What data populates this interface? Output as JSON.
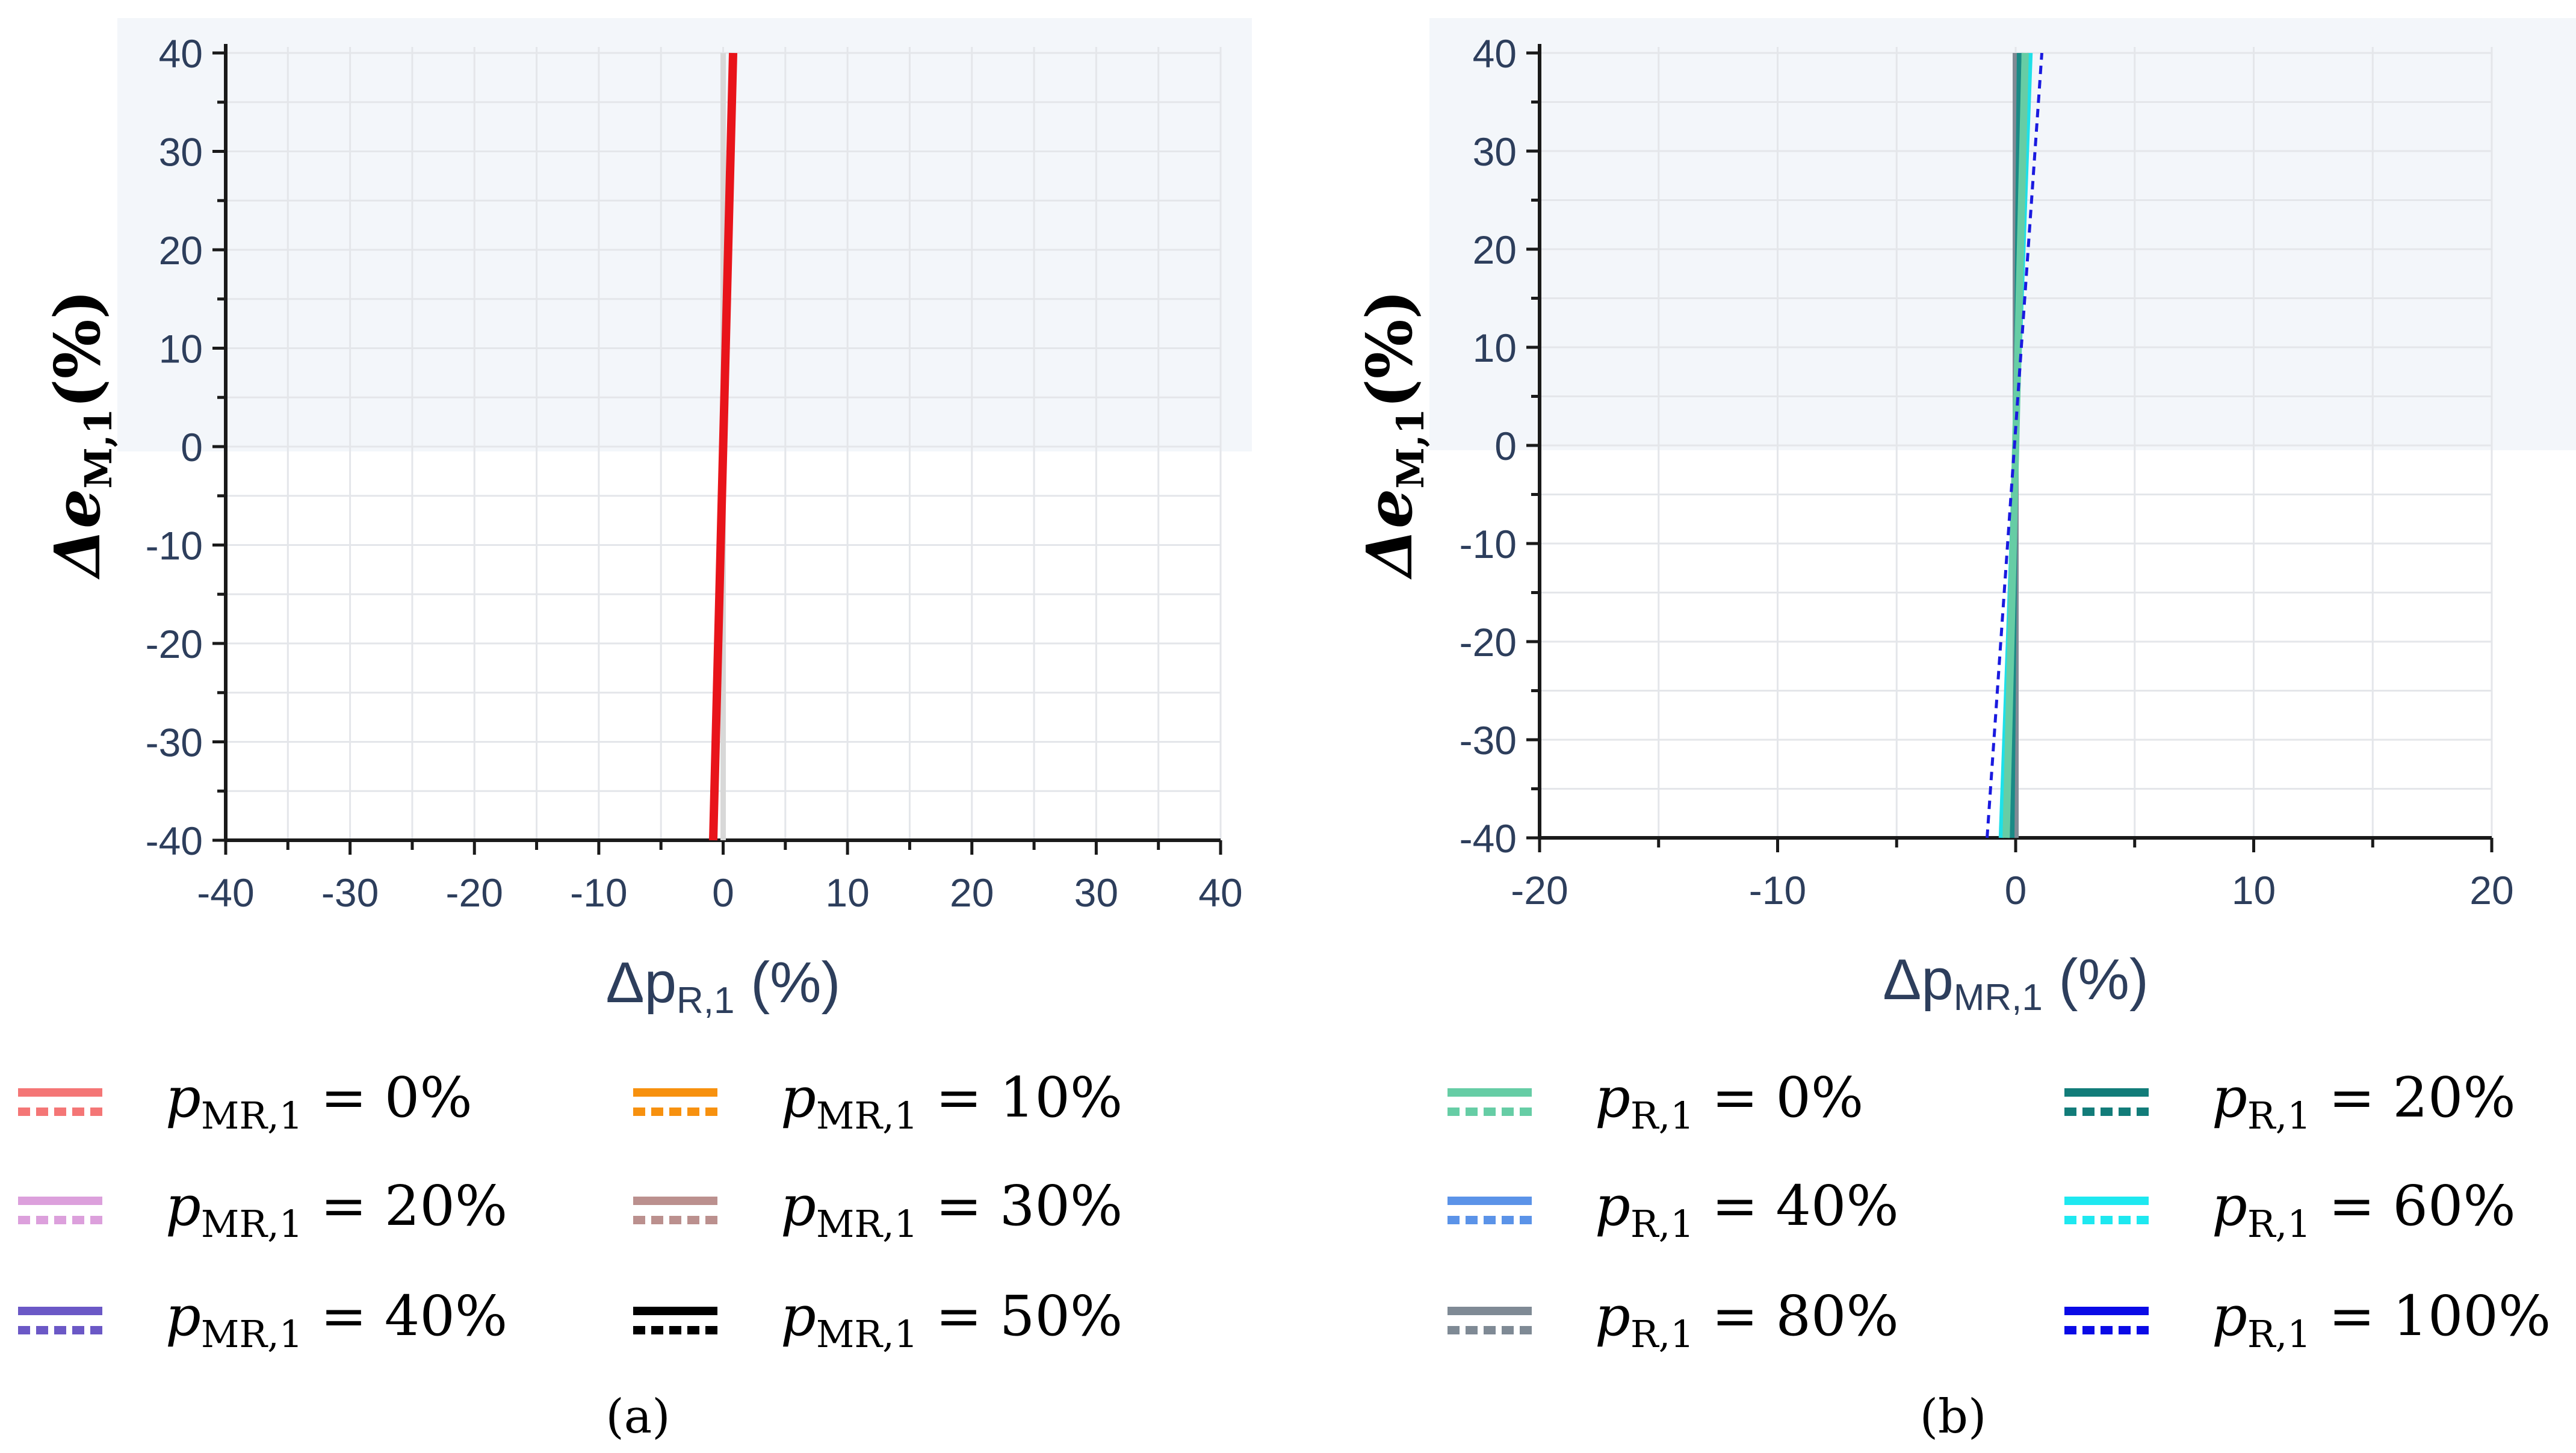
{
  "chart_data": [
    {
      "panel": "a",
      "type": "line",
      "caption": "(a)",
      "xlabel": {
        "main": "Δp",
        "sub": "R,1",
        "unit": " (%)"
      },
      "ylabel": {
        "main": "Δe",
        "sub": "M,1",
        "unit": "(%)"
      },
      "xlim": [
        -40,
        40
      ],
      "ylim": [
        -40,
        40
      ],
      "x_ticks": [
        "-40",
        "-30",
        "-20",
        "-10",
        "0",
        "10",
        "20",
        "30",
        "40"
      ],
      "x_tick_values": [
        -40,
        -30,
        -20,
        -10,
        0,
        10,
        20,
        30,
        40
      ],
      "y_ticks": [
        "40",
        "30",
        "20",
        "10",
        "0",
        "-10",
        "-20",
        "-30",
        "-40"
      ],
      "y_tick_values": [
        40,
        30,
        20,
        10,
        0,
        -10,
        -20,
        -30,
        -40
      ],
      "grid": true,
      "shaded_region": {
        "y_from": 0,
        "y_to": 40,
        "color": "#f3f6fa"
      },
      "series": [
        {
          "color": "#d8d8d8",
          "width": 9,
          "dash": false,
          "x": [
            0,
            0
          ],
          "y": [
            -40,
            40
          ]
        },
        {
          "color": "#e8141a",
          "width": 14,
          "dash": false,
          "x": [
            -0.8,
            0.8
          ],
          "y": [
            -40,
            40
          ]
        }
      ],
      "legend": [
        {
          "var": "p",
          "sub": "MR,1",
          "value": " = 0%",
          "color": "#f47676"
        },
        {
          "var": "p",
          "sub": "MR,1",
          "value": " = 10%",
          "color": "#f7910f"
        },
        {
          "var": "p",
          "sub": "MR,1",
          "value": " = 20%",
          "color": "#dca0dc"
        },
        {
          "var": "p",
          "sub": "MR,1",
          "value": " = 30%",
          "color": "#bb908e"
        },
        {
          "var": "p",
          "sub": "MR,1",
          "value": " = 40%",
          "color": "#6b58c6"
        },
        {
          "var": "p",
          "sub": "MR,1",
          "value": " = 50%",
          "color": "#000000"
        }
      ]
    },
    {
      "panel": "b",
      "type": "line",
      "caption": "(b)",
      "xlabel": {
        "main": "Δp",
        "sub": "MR,1",
        "unit": " (%)"
      },
      "ylabel": {
        "main": "Δe",
        "sub": "M,1",
        "unit": "(%)"
      },
      "xlim": [
        -20,
        20
      ],
      "ylim": [
        -40,
        40
      ],
      "x_ticks": [
        "-20",
        "-10",
        "0",
        "10",
        "20"
      ],
      "x_tick_values": [
        -20,
        -10,
        0,
        10,
        20
      ],
      "y_ticks": [
        "40",
        "30",
        "20",
        "10",
        "0",
        "-10",
        "-20",
        "-30",
        "-40"
      ],
      "y_tick_values": [
        40,
        30,
        20,
        10,
        0,
        -10,
        -20,
        -30,
        -40
      ],
      "grid": true,
      "shaded_region": {
        "y_from": 0,
        "y_to": 40,
        "color": "#f3f6fa"
      },
      "series": [
        {
          "color": "#d8d8d8",
          "width": 9,
          "dash": false,
          "x": [
            0,
            0
          ],
          "y": [
            -40,
            40
          ]
        },
        {
          "color": "#808a95",
          "width": 10,
          "dash": false,
          "x": [
            0,
            0
          ],
          "y": [
            -40,
            40
          ]
        },
        {
          "color": "#1a8a86",
          "width": 8,
          "dash": false,
          "x": [
            -0.15,
            0.15
          ],
          "y": [
            -40,
            40
          ]
        },
        {
          "color": "#5b93e8",
          "width": 8,
          "dash": false,
          "x": [
            -0.35,
            0.35
          ],
          "y": [
            -40,
            40
          ]
        },
        {
          "color": "#1ee0e8",
          "width": 9,
          "dash": false,
          "x": [
            -0.6,
            0.6
          ],
          "y": [
            -40,
            40
          ]
        },
        {
          "color": "#66cda5",
          "width": 12,
          "dash": false,
          "x": [
            -0.4,
            0.4
          ],
          "y": [
            -40,
            40
          ]
        },
        {
          "color": "#1a1adf",
          "width": 5,
          "dash": true,
          "x": [
            -1.2,
            1.1
          ],
          "y": [
            -40,
            40
          ]
        }
      ],
      "legend": [
        {
          "var": "p",
          "sub": "R,1",
          "value": " = 0%",
          "color": "#66cda5"
        },
        {
          "var": "p",
          "sub": "R,1",
          "value": " = 20%",
          "color": "#127c79"
        },
        {
          "var": "p",
          "sub": "R,1",
          "value": " = 40%",
          "color": "#5b93e8"
        },
        {
          "var": "p",
          "sub": "R,1",
          "value": " = 60%",
          "color": "#1ee8f0"
        },
        {
          "var": "p",
          "sub": "R,1",
          "value": " = 80%",
          "color": "#7f8a95"
        },
        {
          "var": "p",
          "sub": "R,1",
          "value": " = 100%",
          "color": "#0a0ae6"
        }
      ]
    }
  ]
}
